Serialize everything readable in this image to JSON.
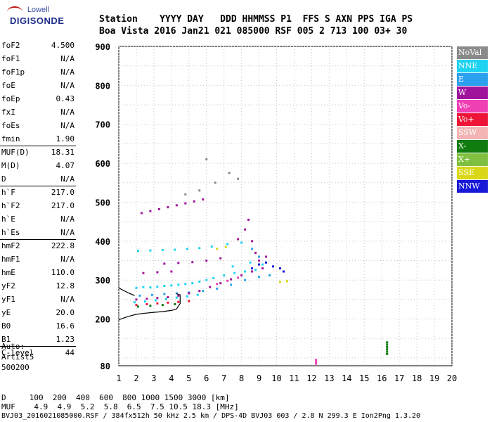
{
  "logo": {
    "top": "Lowell",
    "bottom": "DIGISONDE"
  },
  "header": {
    "line1": "Station    YYYY DAY   DDD HHMMSS P1  FFS S AXN PPS IGA PS",
    "line2": "Boa Vista 2016 Jan21 021 085000 RSF 005 2 713 100 03+ 30"
  },
  "parameters": [
    {
      "name": "foF2",
      "value": "4.500"
    },
    {
      "name": "foF1",
      "value": "N/A"
    },
    {
      "name": "foF1p",
      "value": "N/A"
    },
    {
      "name": "foE",
      "value": "N/A"
    },
    {
      "name": "foEp",
      "value": "0.43"
    },
    {
      "name": "fxI",
      "value": "N/A"
    },
    {
      "name": "foEs",
      "value": "N/A"
    },
    {
      "name": "fmin",
      "value": "1.90"
    },
    {
      "name": "MUF(D)",
      "value": "18.31"
    },
    {
      "name": "M(D)",
      "value": "4.07"
    },
    {
      "name": "D",
      "value": "N/A"
    },
    {
      "name": "h`F",
      "value": "217.0"
    },
    {
      "name": "h`F2",
      "value": "217.0"
    },
    {
      "name": "h`E",
      "value": "N/A"
    },
    {
      "name": "h`Es",
      "value": "N/A"
    },
    {
      "name": "hmF2",
      "value": "222.8"
    },
    {
      "name": "hmF1",
      "value": "N/A"
    },
    {
      "name": "hmE",
      "value": "110.0"
    },
    {
      "name": "yF2",
      "value": "12.8"
    },
    {
      "name": "yF1",
      "value": "N/A"
    },
    {
      "name": "yE",
      "value": "20.0"
    },
    {
      "name": "B0",
      "value": "16.6"
    },
    {
      "name": "B1",
      "value": "1.23"
    },
    {
      "name": "C-level",
      "value": "44"
    }
  ],
  "auto": {
    "line1": "Auto:",
    "line2": "Artist5",
    "line3": "500200"
  },
  "legend": [
    {
      "label": "NoVal",
      "color": "#8a8a8a"
    },
    {
      "label": "NNE",
      "color": "#1ed2f2"
    },
    {
      "label": "E",
      "color": "#2aa0ee"
    },
    {
      "label": "W",
      "color": "#a0149c"
    },
    {
      "label": "Vo-",
      "color": "#f040b4"
    },
    {
      "label": "Vo+",
      "color": "#ee1438"
    },
    {
      "label": "SSW",
      "color": "#f4b4b4"
    },
    {
      "label": "X-",
      "color": "#107c10"
    },
    {
      "label": "X+",
      "color": "#80c040"
    },
    {
      "label": "SSE",
      "color": "#d8d818"
    },
    {
      "label": "NNW",
      "color": "#1818d8"
    }
  ],
  "footer": {
    "line1": "D     100  200  400  600  800 1000 1500 3000 [km]",
    "line2": "MUF    4.9  4.9  5.2  5.8  6.5  7.5 10.5 18.3 [MHz]",
    "line3": "BVJ03_2016021085000.RSF / 384fx512h 50 kHz 2.5 km / DPS-4D BVJ03 003 / 2.8 N 299.3 E Ion2Png 1.3.20"
  },
  "chart_data": {
    "type": "scatter",
    "title": "",
    "xlabel": "",
    "ylabel": "",
    "xlim": [
      1,
      20
    ],
    "ylim": [
      80,
      900
    ],
    "x_ticks": [
      1,
      2,
      3,
      4,
      5,
      6,
      7,
      8,
      9,
      10,
      11,
      12,
      13,
      14,
      15,
      16,
      17,
      18,
      19,
      20
    ],
    "y_ticks": [
      80,
      200,
      300,
      400,
      500,
      600,
      700,
      800,
      900
    ],
    "grid": true,
    "legend_position": "right",
    "series": [
      {
        "name": "NNE",
        "color": "#1ed2f2",
        "points": [
          [
            2.0,
            280
          ],
          [
            2.4,
            282
          ],
          [
            2.8,
            281
          ],
          [
            3.2,
            283
          ],
          [
            3.6,
            285
          ],
          [
            4.0,
            286
          ],
          [
            4.4,
            288
          ],
          [
            4.8,
            290
          ],
          [
            5.2,
            292
          ],
          [
            5.6,
            296
          ],
          [
            6.0,
            300
          ],
          [
            6.4,
            305
          ],
          [
            7.0,
            312
          ],
          [
            7.6,
            318
          ],
          [
            8.2,
            322
          ],
          [
            8.8,
            326
          ],
          [
            2.1,
            375
          ],
          [
            2.8,
            376
          ],
          [
            3.5,
            377
          ],
          [
            4.2,
            378
          ],
          [
            4.9,
            380
          ],
          [
            5.6,
            382
          ],
          [
            6.3,
            386
          ],
          [
            7.2,
            392
          ],
          [
            8.0,
            396
          ],
          [
            1.9,
            243
          ],
          [
            2.5,
            245
          ],
          [
            3.1,
            248
          ],
          [
            3.7,
            251
          ],
          [
            4.3,
            255
          ],
          [
            4.9,
            258
          ],
          [
            5.5,
            262
          ],
          [
            7.5,
            335
          ],
          [
            8.5,
            345
          ],
          [
            9.2,
            340
          ]
        ]
      },
      {
        "name": "E",
        "color": "#2aa0ee",
        "points": [
          [
            2.2,
            260
          ],
          [
            2.9,
            262
          ],
          [
            3.6,
            264
          ],
          [
            4.3,
            266
          ],
          [
            5.0,
            268
          ],
          [
            5.8,
            272
          ],
          [
            6.6,
            278
          ],
          [
            7.4,
            288
          ],
          [
            8.2,
            300
          ],
          [
            9.0,
            308
          ],
          [
            9.6,
            312
          ],
          [
            8.6,
            380
          ],
          [
            9.0,
            360
          ]
        ]
      },
      {
        "name": "W",
        "color": "#a0149c",
        "points": [
          [
            2.3,
            472
          ],
          [
            2.8,
            477
          ],
          [
            3.3,
            482
          ],
          [
            3.8,
            487
          ],
          [
            4.3,
            492
          ],
          [
            4.8,
            497
          ],
          [
            5.3,
            502
          ],
          [
            5.8,
            507
          ],
          [
            2.0,
            250
          ],
          [
            2.6,
            252
          ],
          [
            3.2,
            254
          ],
          [
            3.8,
            256
          ],
          [
            4.4,
            260
          ],
          [
            5.0,
            266
          ],
          [
            5.6,
            272
          ],
          [
            6.2,
            282
          ],
          [
            6.8,
            292
          ],
          [
            7.4,
            302
          ],
          [
            8.0,
            312
          ],
          [
            8.6,
            322
          ],
          [
            9.2,
            330
          ],
          [
            7.8,
            405
          ],
          [
            8.2,
            430
          ],
          [
            8.4,
            455
          ],
          [
            8.6,
            400
          ],
          [
            8.8,
            370
          ],
          [
            9.0,
            350
          ],
          [
            9.4,
            360
          ],
          [
            3.6,
            342
          ],
          [
            4.4,
            344
          ],
          [
            5.2,
            346
          ],
          [
            6.0,
            350
          ],
          [
            6.8,
            356
          ],
          [
            2.4,
            318
          ],
          [
            3.2,
            320
          ],
          [
            4.0,
            322
          ]
        ]
      },
      {
        "name": "Vo-",
        "color": "#f040b4",
        "points": [
          [
            12.25,
            85
          ],
          [
            12.25,
            90
          ],
          [
            12.25,
            95
          ],
          [
            6.6,
            290
          ],
          [
            7.2,
            298
          ],
          [
            7.8,
            306
          ]
        ]
      },
      {
        "name": "Vo+",
        "color": "#ee1438",
        "points": [
          [
            2.0,
            236
          ],
          [
            2.6,
            238
          ],
          [
            3.2,
            240
          ],
          [
            3.8,
            242
          ],
          [
            4.4,
            244
          ],
          [
            5.0,
            246
          ]
        ]
      },
      {
        "name": "X-",
        "color": "#107c10",
        "points": [
          [
            2.1,
            232
          ],
          [
            2.8,
            234
          ],
          [
            3.5,
            236
          ],
          [
            4.2,
            238
          ],
          [
            16.3,
            110
          ],
          [
            16.3,
            116
          ],
          [
            16.3,
            122
          ],
          [
            16.3,
            128
          ],
          [
            16.3,
            134
          ],
          [
            16.3,
            140
          ]
        ]
      },
      {
        "name": "SSE",
        "color": "#d8d818",
        "points": [
          [
            6.6,
            380
          ],
          [
            7.1,
            385
          ],
          [
            10.2,
            295
          ],
          [
            10.6,
            297
          ]
        ]
      },
      {
        "name": "NNW",
        "color": "#1818d8",
        "points": [
          [
            8.6,
            330
          ],
          [
            9.0,
            340
          ],
          [
            9.4,
            345
          ],
          [
            9.8,
            335
          ],
          [
            10.2,
            330
          ],
          [
            10.4,
            322
          ]
        ]
      },
      {
        "name": "NoVal",
        "color": "#8a8a8a",
        "points": [
          [
            4.8,
            520
          ],
          [
            5.6,
            530
          ],
          [
            6.5,
            550
          ],
          [
            7.3,
            575
          ],
          [
            6.0,
            610
          ],
          [
            7.8,
            560
          ]
        ]
      }
    ],
    "traces": [
      {
        "name": "virtual-height-trace",
        "color": "#000000",
        "points": [
          [
            1.0,
            198
          ],
          [
            1.5,
            206
          ],
          [
            2.0,
            212
          ],
          [
            2.5,
            215
          ],
          [
            3.0,
            217
          ],
          [
            3.5,
            219
          ],
          [
            4.0,
            222
          ],
          [
            4.3,
            226
          ],
          [
            4.5,
            240
          ],
          [
            4.5,
            262
          ],
          [
            4.3,
            265
          ]
        ]
      },
      {
        "name": "virtual-height-trace-upper",
        "color": "#000000",
        "points": [
          [
            1.0,
            280
          ],
          [
            1.2,
            275
          ],
          [
            1.5,
            268
          ],
          [
            1.9,
            260
          ]
        ]
      }
    ]
  }
}
